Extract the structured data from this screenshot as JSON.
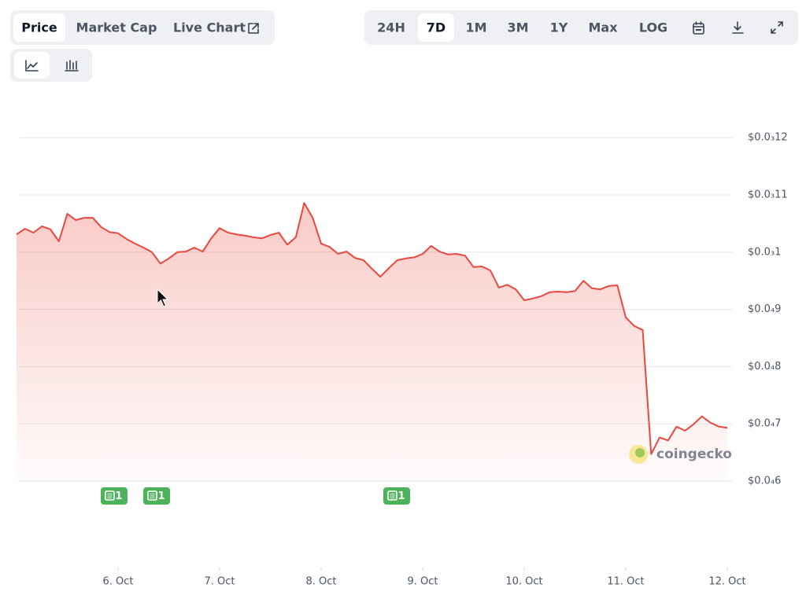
{
  "toolbar": {
    "views": [
      "Price",
      "Market Cap",
      "Live Chart"
    ],
    "ranges": [
      "24H",
      "7D",
      "1M",
      "3M",
      "1Y",
      "Max",
      "LOG"
    ]
  },
  "chart_data": {
    "type": "line",
    "watermark": "coingecko",
    "series": [
      {
        "name": "Price",
        "color": "#e8483e",
        "values": [
          0.0001031,
          0.0001041,
          0.0001034,
          0.0001045,
          0.000104,
          0.0001019,
          0.0001067,
          0.0001056,
          0.000106,
          0.000106,
          0.0001044,
          0.0001035,
          0.0001033,
          0.0001023,
          0.0001015,
          0.0001008,
          0.0001,
          9.8e-05,
          9.89e-05,
          0.0001,
          0.0001001,
          0.0001008,
          0.0001001,
          0.0001024,
          0.0001042,
          0.0001034,
          0.0001031,
          0.0001029,
          0.0001026,
          0.0001024,
          0.000103,
          0.0001034,
          0.0001013,
          0.0001026,
          0.0001086,
          0.000106,
          0.0001015,
          0.0001009,
          9.97e-05,
          0.0001001,
          9.9e-05,
          9.86e-05,
          9.71e-05,
          9.57e-05,
          9.72e-05,
          9.86e-05,
          9.89e-05,
          9.91e-05,
          9.97e-05,
          0.0001011,
          0.0001001,
          9.96e-05,
          9.97e-05,
          9.94e-05,
          9.74e-05,
          9.75e-05,
          9.68e-05,
          9.38e-05,
          9.43e-05,
          9.35e-05,
          9.16e-05,
          9.19e-05,
          9.23e-05,
          9.3e-05,
          9.31e-05,
          9.3e-05,
          9.32e-05,
          9.5e-05,
          9.37e-05,
          9.35e-05,
          9.41e-05,
          9.42e-05,
          8.86e-05,
          8.71e-05,
          8.64e-05,
          6.47e-05,
          6.76e-05,
          6.71e-05,
          6.95e-05,
          6.88e-05,
          6.99e-05,
          7.13e-05,
          7.02e-05,
          6.95e-05,
          6.93e-05
        ]
      }
    ],
    "xlim": [
      0,
      84
    ],
    "xticks": [
      {
        "value": 12,
        "label": "6. Oct"
      },
      {
        "value": 24,
        "label": "7. Oct"
      },
      {
        "value": 36,
        "label": "8. Oct"
      },
      {
        "value": 48,
        "label": "9. Oct"
      },
      {
        "value": 60,
        "label": "10. Oct"
      },
      {
        "value": 72,
        "label": "11. Oct"
      },
      {
        "value": 84,
        "label": "12. Oct"
      }
    ],
    "ylim": [
      6e-05,
      0.000125
    ],
    "yticks": [
      {
        "value": 0.00012,
        "label": "$0.0₃12"
      },
      {
        "value": 0.00011,
        "label": "$0.0₃11"
      },
      {
        "value": 0.0001,
        "label": "$0.0₃1"
      },
      {
        "value": 9e-05,
        "label": "$0.0₄9"
      },
      {
        "value": 8e-05,
        "label": "$0.0₄8"
      },
      {
        "value": 7e-05,
        "label": "$0.0₄7"
      },
      {
        "value": 6e-05,
        "label": "$0.0₄6"
      }
    ],
    "grid": true,
    "annotations": [
      {
        "x": 11.53,
        "label": "1"
      },
      {
        "x": 16.56,
        "label": "1"
      },
      {
        "x": 44.93,
        "label": "1"
      }
    ]
  }
}
